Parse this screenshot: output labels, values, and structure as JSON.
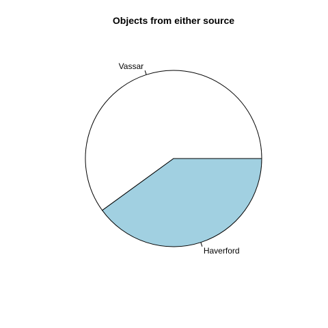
{
  "chart_data": {
    "type": "pie",
    "title": "Objects from either source",
    "slices": [
      {
        "label": "Vassar",
        "value": 0.6,
        "color": "#ffffff"
      },
      {
        "label": "Haverford",
        "value": 0.4,
        "color": "#a1d0e1"
      }
    ],
    "start_angle_deg": 0,
    "direction": "counterclockwise"
  }
}
